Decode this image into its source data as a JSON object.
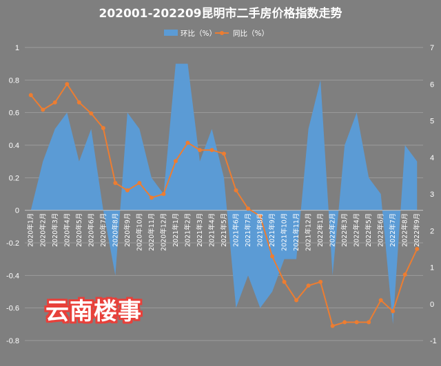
{
  "chart_data": {
    "type": "area+line",
    "title": "202001-202209昆明市二手房价格指数走势",
    "watermark": "云南楼事",
    "categories": [
      "2020年1月",
      "2020年2月",
      "2020年3月",
      "2020年4月",
      "2020年5月",
      "2020年6月",
      "2020年7月",
      "2020年8月",
      "2020年9月",
      "2020年10月",
      "2020年11月",
      "2020年12月",
      "2021年1月",
      "2021年2月",
      "2021年3月",
      "2021年4月",
      "2021年5月",
      "2021年6月",
      "2021年7月",
      "2021年8月",
      "2021年9月",
      "2021年10月",
      "2021年11月",
      "2021年12月",
      "2022年1月",
      "2022年2月",
      "2022年3月",
      "2022年4月",
      "2022年5月",
      "2022年6月",
      "2022年7月",
      "2022年8月",
      "2022年9月"
    ],
    "series": [
      {
        "name": "环比（%）",
        "type": "area",
        "axis": "left",
        "color": "#5b9bd5",
        "values": [
          0,
          0.3,
          0.5,
          0.6,
          0.3,
          0.5,
          0,
          -0.4,
          0.6,
          0.5,
          0.2,
          0.1,
          0.9,
          0.9,
          0.3,
          0.5,
          0.2,
          -0.6,
          -0.4,
          -0.6,
          -0.5,
          -0.3,
          -0.3,
          0.5,
          0.8,
          -0.4,
          0.4,
          0.6,
          0.2,
          0.1,
          -0.7,
          0.4,
          0.3
        ]
      },
      {
        "name": "同比（%）",
        "type": "line",
        "axis": "right",
        "color": "#ed7d31",
        "values": [
          5.7,
          5.3,
          5.5,
          6.0,
          5.5,
          5.2,
          4.8,
          3.3,
          3.1,
          3.3,
          2.9,
          3.0,
          3.9,
          4.4,
          4.2,
          4.2,
          4.1,
          3.1,
          2.6,
          2.4,
          1.3,
          0.6,
          0.1,
          0.5,
          0.6,
          -0.6,
          -0.5,
          -0.5,
          -0.5,
          0.1,
          -0.2,
          0.8,
          1.5
        ]
      }
    ],
    "y_left": {
      "min": -0.8,
      "max": 1.0,
      "step": 0.2,
      "ticks": [
        "-0.8",
        "-0.6",
        "-0.4",
        "-0.2",
        "0",
        "0.2",
        "0.4",
        "0.6",
        "0.8",
        "1"
      ]
    },
    "y_right": {
      "min": -1,
      "max": 7,
      "step": 1,
      "ticks": [
        "-1",
        "0",
        "1",
        "2",
        "3",
        "4",
        "5",
        "6",
        "7"
      ]
    },
    "grid": true,
    "legend": "top-center"
  }
}
